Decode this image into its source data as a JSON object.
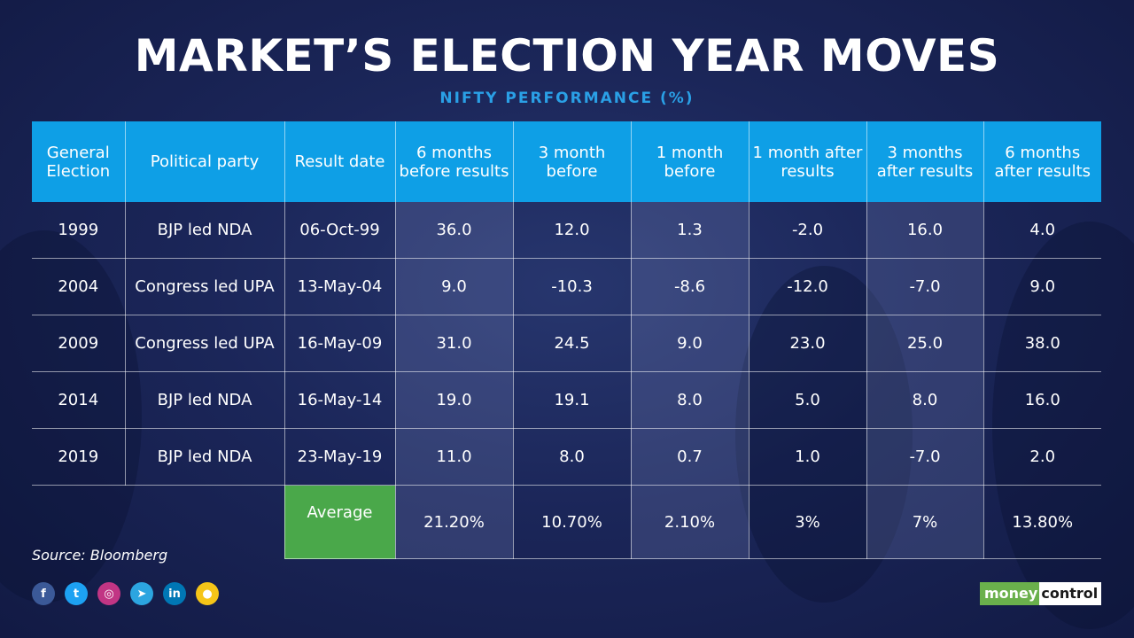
{
  "title": "MARKET’S ELECTION YEAR MOVES",
  "subtitle": "NIFTY PERFORMANCE (%)",
  "chart_data": {
    "type": "table",
    "columns": [
      "General Election",
      "Political party",
      "Result date",
      "6 months before results",
      "3 month before",
      "1 month before",
      "1 month after results",
      "3 months after results",
      "6 months after results"
    ],
    "rows": [
      [
        "1999",
        "BJP led NDA",
        "06-Oct-99",
        "36.0",
        "12.0",
        "1.3",
        "-2.0",
        "16.0",
        "4.0"
      ],
      [
        "2004",
        "Congress led UPA",
        "13-May-04",
        "9.0",
        "-10.3",
        "-8.6",
        "-12.0",
        "-7.0",
        "9.0"
      ],
      [
        "2009",
        "Congress led UPA",
        "16-May-09",
        "31.0",
        "24.5",
        "9.0",
        "23.0",
        "25.0",
        "38.0"
      ],
      [
        "2014",
        "BJP led NDA",
        "16-May-14",
        "19.0",
        "19.1",
        "8.0",
        "5.0",
        "8.0",
        "16.0"
      ],
      [
        "2019",
        "BJP led NDA",
        "23-May-19",
        "11.0",
        "8.0",
        "0.7",
        "1.0",
        "-7.0",
        "2.0"
      ]
    ],
    "average": {
      "label": "Average",
      "values": [
        "21.20%",
        "10.70%",
        "2.10%",
        "3%",
        "7%",
        "13.80%"
      ]
    }
  },
  "source": "Source: Bloomberg",
  "socials": [
    {
      "icon": "facebook-icon",
      "glyph": "f",
      "color": "#3b5998"
    },
    {
      "icon": "twitter-icon",
      "glyph": "t",
      "color": "#1da1f2"
    },
    {
      "icon": "instagram-icon",
      "glyph": "◎",
      "color": "#c13584"
    },
    {
      "icon": "telegram-icon",
      "glyph": "➤",
      "color": "#2ca5e0"
    },
    {
      "icon": "linkedin-icon",
      "glyph": "in",
      "color": "#0077b5"
    },
    {
      "icon": "koo-icon",
      "glyph": "●",
      "color": "#f5c518"
    }
  ],
  "logo": {
    "part1": "money",
    "part2": "control"
  },
  "colors": {
    "header": "#0e9fe6",
    "average_label": "#4aa84a",
    "subtitle": "#2aa0e6"
  }
}
